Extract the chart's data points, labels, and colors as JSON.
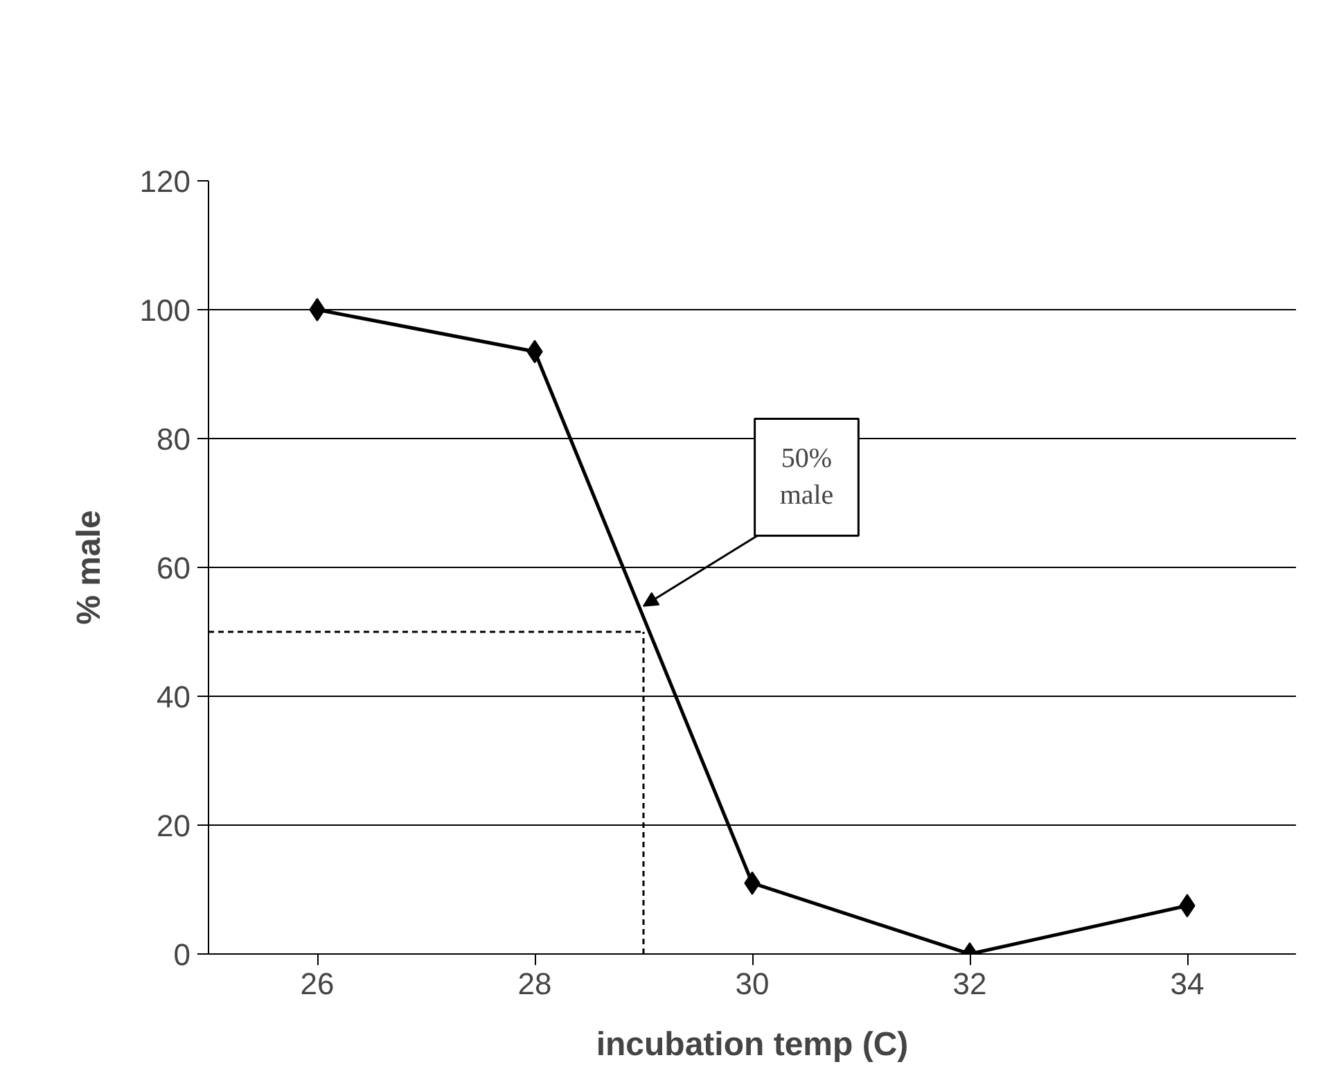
{
  "chart_data": {
    "type": "line",
    "xlabel": "incubation temp (C)",
    "ylabel": "% male",
    "x": [
      26,
      28,
      30,
      32,
      34
    ],
    "series": [
      {
        "color": "#000000",
        "values": [
          100,
          93.5,
          11,
          0,
          7.5
        ]
      }
    ],
    "xlim": [
      25,
      35
    ],
    "xticks": [
      26,
      28,
      30,
      32,
      34
    ],
    "ylim": [
      0,
      120
    ],
    "yticks": [
      0,
      20,
      40,
      60,
      80,
      100,
      120
    ],
    "grid": "y",
    "marker": "diamond",
    "line_style": "solid",
    "ref_lines": [
      {
        "axis": "y",
        "value": 50,
        "line_style": "dashed",
        "color": "#000000"
      },
      {
        "axis": "x",
        "value": 29,
        "line_style": "dashed",
        "color": "#000000"
      }
    ],
    "annotations": [
      {
        "text": "50% male",
        "x": 29,
        "y": 54
      }
    ]
  }
}
